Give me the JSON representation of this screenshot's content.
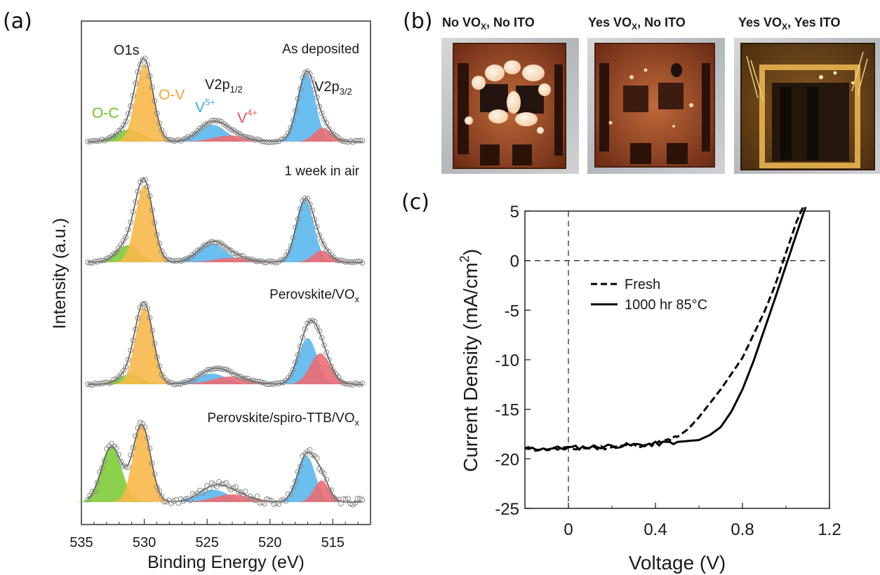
{
  "panels": {
    "a": "(a)",
    "b": "(b)",
    "c": "(c)"
  },
  "photos": [
    {
      "title": "No VO",
      "sub": "X",
      "rest": ", No ITO"
    },
    {
      "title": "Yes VO",
      "sub": "X",
      "rest": ", No ITO"
    },
    {
      "title": "Yes VO",
      "sub": "X",
      "rest": ", Yes ITO"
    }
  ],
  "colors": {
    "O-C": "#7fcc37",
    "O-V": "#f7b84a",
    "V5+": "#5bb8ee",
    "V4+": "#ec6b74",
    "data_points": "#888888",
    "envelope": "#444444",
    "jv_curves": "#000000"
  },
  "chart_data": [
    {
      "type": "line",
      "panel": "a",
      "xlabel": "Binding Energy (eV)",
      "ylabel": "Intensity (a.u.)",
      "xlim": [
        535,
        512
      ],
      "xticks": [
        535,
        530,
        525,
        520,
        515
      ],
      "y_axis_tick_labels": false,
      "peak_labels": {
        "O1s": "O1s",
        "O-V": "O-V",
        "O-C": "O-C",
        "V2p12_base": "V2p",
        "V2p12_sub": "1/2",
        "V2p32_base": "V2p",
        "V2p32_sub": "3/2",
        "V5_base": "V",
        "V5_sup": "5+",
        "V4_base": "V",
        "V4_sup": "4+"
      },
      "spectra": [
        {
          "label": "As deposited",
          "label_sub": "",
          "peaks": [
            {
              "component": "O-C",
              "center": 531.2,
              "height": 0.16,
              "width": 1.0
            },
            {
              "component": "O-V",
              "center": 530.0,
              "height": 1.0,
              "width": 0.7
            },
            {
              "component": "V5+",
              "center": 524.6,
              "height": 0.22,
              "width": 1.1
            },
            {
              "component": "V4+",
              "center": 523.2,
              "height": 0.08,
              "width": 1.3
            },
            {
              "component": "V5+",
              "center": 517.1,
              "height": 0.88,
              "width": 0.7
            },
            {
              "component": "V4+",
              "center": 515.8,
              "height": 0.18,
              "width": 0.7
            }
          ]
        },
        {
          "label": "1 week in air",
          "label_sub": "",
          "peaks": [
            {
              "component": "O-C",
              "center": 531.3,
              "height": 0.22,
              "width": 0.9
            },
            {
              "component": "O-V",
              "center": 530.0,
              "height": 1.0,
              "width": 0.7
            },
            {
              "component": "V5+",
              "center": 524.6,
              "height": 0.24,
              "width": 1.1
            },
            {
              "component": "V4+",
              "center": 523.0,
              "height": 0.06,
              "width": 1.3
            },
            {
              "component": "V5+",
              "center": 517.2,
              "height": 0.8,
              "width": 0.7
            },
            {
              "component": "V4+",
              "center": 515.9,
              "height": 0.15,
              "width": 0.7
            }
          ]
        },
        {
          "label": "Perovskite/VO",
          "label_sub": "x",
          "peaks": [
            {
              "component": "O-C",
              "center": 531.1,
              "height": 0.13,
              "width": 0.9
            },
            {
              "component": "O-V",
              "center": 530.0,
              "height": 1.0,
              "width": 0.7
            },
            {
              "component": "V5+",
              "center": 524.6,
              "height": 0.14,
              "width": 1.1
            },
            {
              "component": "V4+",
              "center": 523.2,
              "height": 0.1,
              "width": 1.4
            },
            {
              "component": "V5+",
              "center": 517.0,
              "height": 0.6,
              "width": 0.75
            },
            {
              "component": "V4+",
              "center": 516.0,
              "height": 0.4,
              "width": 0.8
            }
          ]
        },
        {
          "label": "Perovskite/spiro-TTB/VO",
          "label_sub": "x",
          "peaks": [
            {
              "component": "O-C",
              "center": 532.6,
              "height": 0.72,
              "width": 0.8
            },
            {
              "component": "O-V",
              "center": 530.2,
              "height": 1.0,
              "width": 0.7
            },
            {
              "component": "V5+",
              "center": 524.5,
              "height": 0.16,
              "width": 1.2
            },
            {
              "component": "V4+",
              "center": 523.0,
              "height": 0.1,
              "width": 1.4
            },
            {
              "component": "V5+",
              "center": 517.1,
              "height": 0.6,
              "width": 0.7
            },
            {
              "component": "V4+",
              "center": 515.9,
              "height": 0.28,
              "width": 0.6
            }
          ]
        }
      ]
    },
    {
      "type": "line",
      "panel": "c",
      "xlabel": "Voltage (V)",
      "ylabel": "Current Density (mA/cm",
      "ylabel_sup": "2",
      "ylabel_end": ")",
      "xlim": [
        -0.2,
        1.2
      ],
      "ylim": [
        -25,
        5
      ],
      "xticks": [
        "0",
        "0.4",
        "0.8",
        "1.2"
      ],
      "yticks": [
        "5",
        "0",
        "-5",
        "-10",
        "-15",
        "-20",
        "-25"
      ],
      "legend_position": "upper-left",
      "series": [
        {
          "name": "Fresh",
          "style": "dashed",
          "x": [
            -0.2,
            0.0,
            0.2,
            0.4,
            0.5,
            0.55,
            0.6,
            0.7,
            0.8,
            0.9,
            0.95,
            1.0,
            1.05,
            1.08
          ],
          "y": [
            -19.0,
            -19.0,
            -18.8,
            -18.5,
            -17.8,
            -17.0,
            -15.8,
            -13.0,
            -9.8,
            -5.2,
            -2.5,
            0.8,
            4.0,
            5.5
          ]
        },
        {
          "name": "1000 hr 85°C",
          "style": "solid",
          "x": [
            -0.2,
            0.0,
            0.2,
            0.4,
            0.6,
            0.65,
            0.7,
            0.75,
            0.8,
            0.85,
            0.9,
            0.95,
            1.0,
            1.05,
            1.09
          ],
          "y": [
            -19.0,
            -18.9,
            -18.7,
            -18.5,
            -18.1,
            -17.6,
            -16.8,
            -15.2,
            -13.0,
            -10.2,
            -7.0,
            -3.8,
            -0.5,
            2.8,
            5.4
          ]
        }
      ]
    }
  ]
}
